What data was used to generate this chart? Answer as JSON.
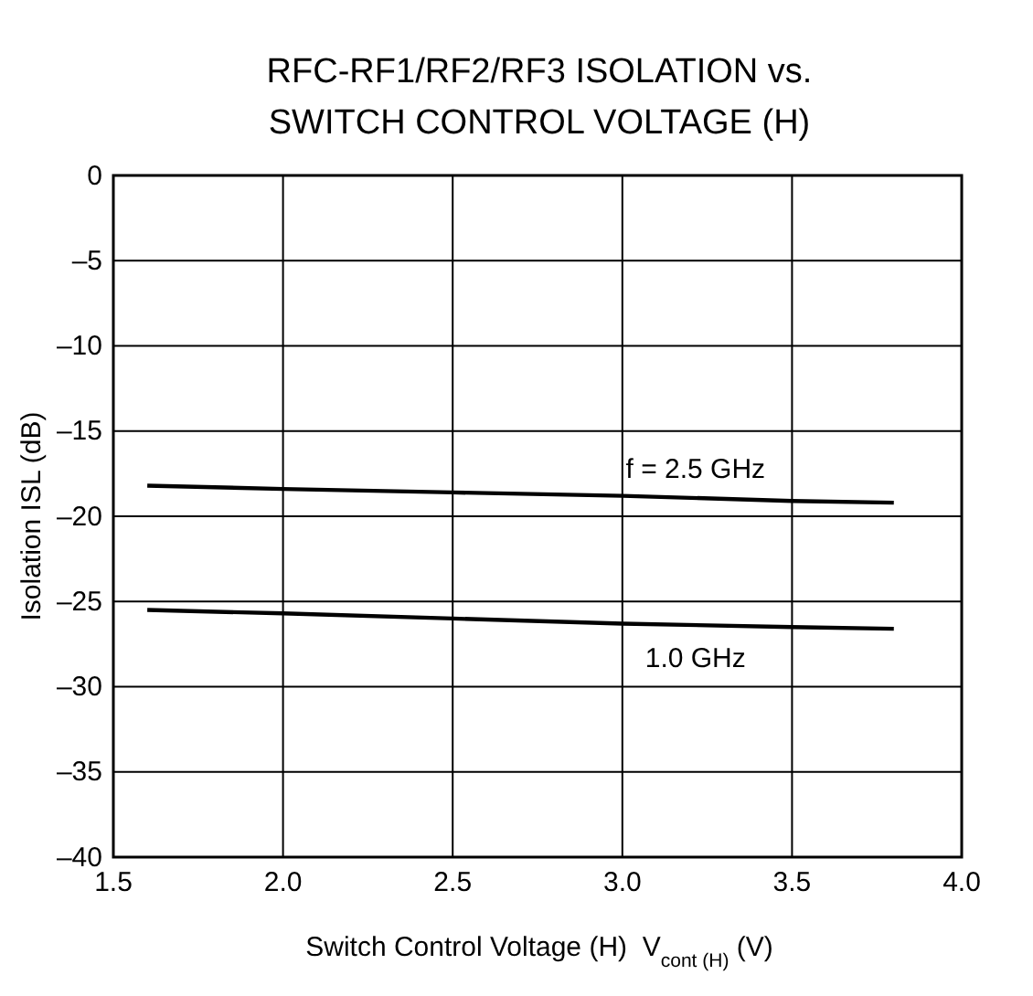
{
  "chart_data": {
    "type": "line",
    "title": "RFC-RF1/RF2/RF3 ISOLATION vs.\nSWITCH CONTROL VOLTAGE (H)",
    "xlabel": "Switch Control Voltage (H)  V$_{cont (H)}$ (V)",
    "ylabel": "Isolation  ISL (dB)",
    "x": [
      1.6,
      2.0,
      2.5,
      3.0,
      3.5,
      3.8
    ],
    "series": [
      {
        "name": "f = 2.5 GHz",
        "color": "#000000",
        "values": [
          -18.2,
          -18.4,
          -18.6,
          -18.8,
          -19.1,
          -19.2
        ]
      },
      {
        "name": "1.0 GHz",
        "color": "#000000",
        "values": [
          -25.5,
          -25.7,
          -26.0,
          -26.3,
          -26.5,
          -26.6
        ]
      }
    ],
    "xlim": [
      1.5,
      4.0
    ],
    "xticks": [
      1.5,
      {
        "value": 2,
        "label": "2.0"
      },
      2.5,
      {
        "value": 3,
        "label": "3.0"
      },
      3.5,
      {
        "value": 4,
        "label": "4.0"
      }
    ],
    "ylim": [
      -40,
      0
    ],
    "yticks": [
      {
        "value": -40,
        "label": "–40"
      },
      {
        "value": -35,
        "label": "–35"
      },
      {
        "value": -30,
        "label": "–30"
      },
      {
        "value": -25,
        "label": "–25"
      },
      {
        "value": -20,
        "label": "–20"
      },
      {
        "value": -15,
        "label": "–15"
      },
      {
        "value": -10,
        "label": "–10"
      },
      {
        "value": -5,
        "label": "–5"
      },
      0
    ],
    "grid": true,
    "line_style": "solid",
    "marker": "none"
  }
}
